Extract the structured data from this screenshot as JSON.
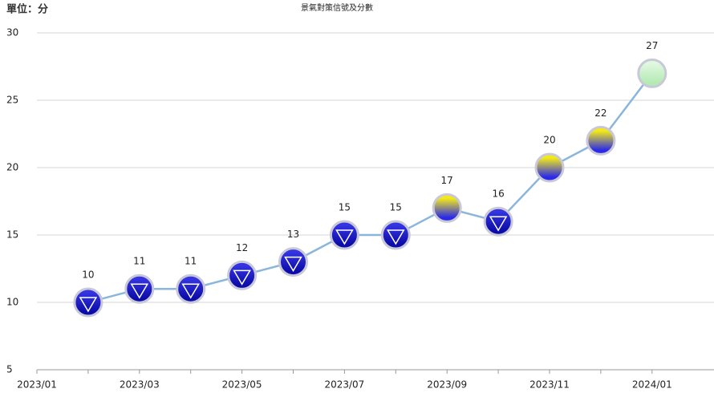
{
  "chart_data": {
    "type": "line",
    "title": "景氣對策信號及分數",
    "y_label": "單位：分",
    "categories": [
      "2023/01",
      null,
      "2023/03",
      null,
      "2023/05",
      null,
      "2023/07",
      null,
      "2023/09",
      null,
      "2023/11",
      null,
      "2024/01"
    ],
    "series": [
      {
        "name": "分數",
        "color": "#8ab6dc",
        "values": [
          null,
          10,
          11,
          11,
          12,
          13,
          15,
          15,
          17,
          16,
          20,
          22,
          27
        ],
        "marker_colors": [
          null,
          [
            "#3434e0",
            "#0c0ca8"
          ],
          [
            "#3434e0",
            "#0c0ca8"
          ],
          [
            "#3434e0",
            "#0c0ca8"
          ],
          [
            "#3434e0",
            "#0c0ca8"
          ],
          [
            "#3434e0",
            "#0c0ca8"
          ],
          [
            "#3434e0",
            "#0c0ca8"
          ],
          [
            "#3434e0",
            "#0c0ca8"
          ],
          [
            "#f2e81a",
            "#2a2ae8"
          ],
          [
            "#3434e0",
            "#0c0ca8"
          ],
          [
            "#f2e81a",
            "#2a2ae8"
          ],
          [
            "#f2e81a",
            "#2a2ae8"
          ],
          [
            "#dff8df",
            "#b4eab4"
          ]
        ],
        "marker_symbols": [
          null,
          "triangle-down",
          "triangle-down",
          "triangle-down",
          "triangle-down",
          "triangle-down",
          "triangle-down",
          "triangle-down",
          null,
          "triangle-down",
          null,
          null,
          null
        ]
      }
    ],
    "ylim": [
      5,
      30
    ],
    "yticks": [
      5,
      10,
      15,
      20,
      25,
      30
    ],
    "grid": true
  }
}
